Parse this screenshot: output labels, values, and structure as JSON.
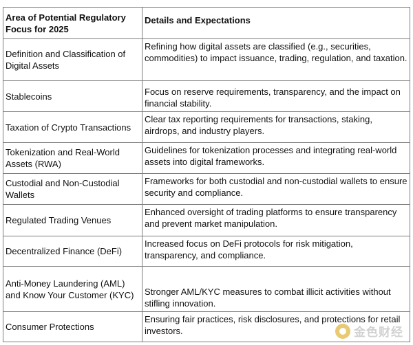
{
  "table": {
    "header": {
      "col1": "Area of Potential Regulatory Focus for 2025",
      "col2": "Details and Expectations"
    },
    "rows": [
      {
        "area": "Definition and Classification of Digital Assets",
        "details": "Refining how digital assets are classified (e.g., securities, commodities) to impact issuance, trading, regulation, and taxation."
      },
      {
        "area": "Stablecoins",
        "details": "Focus on reserve requirements, transparency, and the impact on financial stability."
      },
      {
        "area": "Taxation of Crypto Transactions",
        "details": "Clear tax reporting requirements for transactions, staking, airdrops, and industry players."
      },
      {
        "area": "Tokenization and Real-World Assets (RWA)",
        "details": "Guidelines for tokenization processes and integrating real-world assets into digital frameworks."
      },
      {
        "area": "Custodial and Non-Custodial Wallets",
        "details": "Frameworks for both custodial and non-custodial wallets to ensure security and compliance."
      },
      {
        "area": "Regulated Trading Venues",
        "details": "Enhanced oversight of trading platforms to ensure transparency and prevent market manipulation."
      },
      {
        "area": "Decentralized Finance (DeFi)",
        "details": "Increased focus on DeFi protocols for risk mitigation, transparency, and compliance."
      },
      {
        "area": "Anti-Money Laundering (AML) and Know Your Customer (KYC)",
        "details": "Stronger AML/KYC measures to combat illicit activities without stifling innovation."
      },
      {
        "area": "Consumer Protections",
        "details": "Ensuring fair practices, risk disclosures, and protections for retail investors."
      }
    ]
  },
  "watermark": {
    "text": "金色财经",
    "icon": "gold-coin-logo-icon"
  }
}
